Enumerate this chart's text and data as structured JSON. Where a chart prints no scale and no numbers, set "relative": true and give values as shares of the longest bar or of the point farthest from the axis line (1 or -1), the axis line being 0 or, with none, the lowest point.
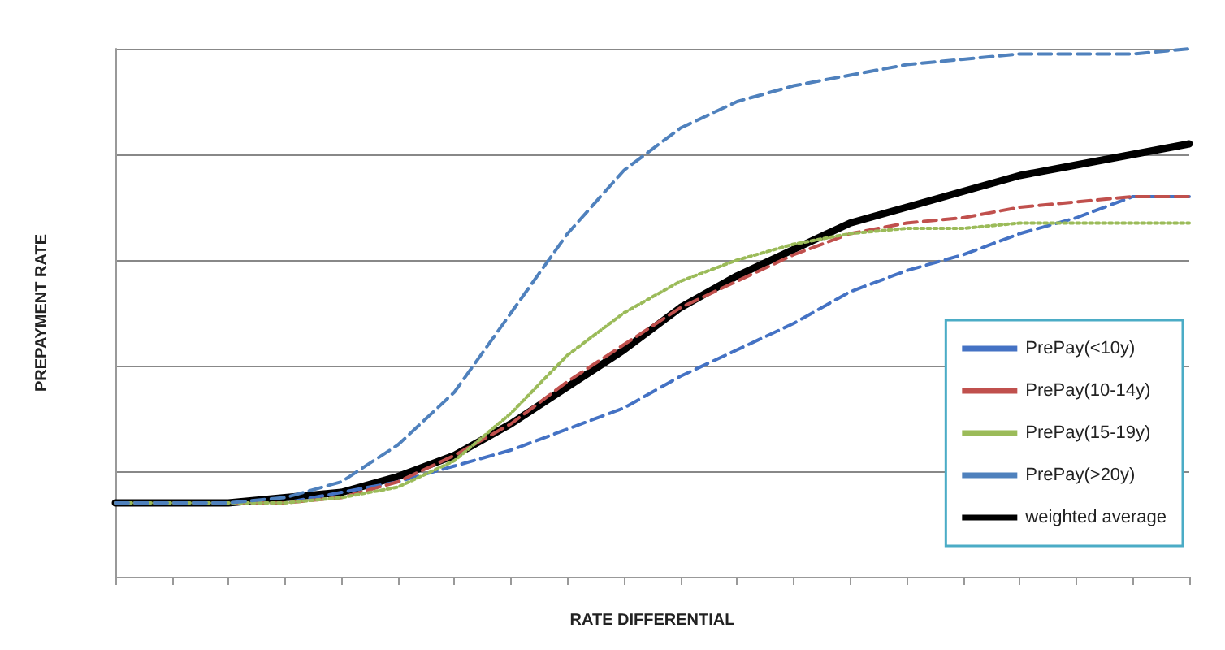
{
  "chart_data": {
    "type": "line",
    "relative": true,
    "xlabel": "RATE DIFFERENTIAL",
    "ylabel": "PREPAYMENT RATE",
    "grid": "y",
    "legend": "bottom right",
    "marker": "none",
    "categories": [
      null,
      null,
      null,
      null,
      null,
      null,
      null,
      null,
      null,
      null,
      null,
      null,
      null,
      null,
      null,
      null,
      null,
      null,
      null,
      null
    ],
    "series": [
      {
        "name": "PrePay(<10y)",
        "color": "#4472c4",
        "line_style": "dashed",
        "values": [
          0.14,
          0.14,
          0.14,
          0.14,
          0.16,
          0.18,
          0.21,
          0.24,
          0.28,
          0.32,
          0.38,
          0.43,
          0.48,
          0.54,
          0.58,
          0.61,
          0.65,
          0.68,
          0.72,
          0.72
        ]
      },
      {
        "name": "PrePay(10-14y)",
        "color": "#c0504d",
        "line_style": "dashed",
        "values": [
          0.14,
          0.14,
          0.14,
          0.14,
          0.15,
          0.18,
          0.23,
          0.29,
          0.37,
          0.44,
          0.51,
          0.56,
          0.61,
          0.65,
          0.67,
          0.68,
          0.7,
          0.71,
          0.72,
          0.72
        ]
      },
      {
        "name": "PrePay(15-19y)",
        "color": "#9bbb59",
        "line_style": "dotted",
        "values": [
          0.14,
          0.14,
          0.14,
          0.14,
          0.15,
          0.17,
          0.22,
          0.31,
          0.42,
          0.5,
          0.56,
          0.6,
          0.63,
          0.65,
          0.66,
          0.66,
          0.67,
          0.67,
          0.67,
          0.67
        ]
      },
      {
        "name": "PrePay(>20y)",
        "color": "#4f81bd",
        "line_style": "dashed",
        "values": [
          0.14,
          0.14,
          0.14,
          0.15,
          0.18,
          0.25,
          0.35,
          0.5,
          0.65,
          0.77,
          0.85,
          0.9,
          0.93,
          0.95,
          0.97,
          0.98,
          0.99,
          0.99,
          0.99,
          1
        ]
      },
      {
        "name": "weighted average",
        "color": "#000000",
        "line_style": "solid",
        "values": [
          0.14,
          0.14,
          0.14,
          0.15,
          0.16,
          0.19,
          0.23,
          0.29,
          0.36,
          0.43,
          0.51,
          0.57,
          0.62,
          0.67,
          0.7,
          0.73,
          0.76,
          0.78,
          0.8,
          0.82
        ]
      }
    ]
  }
}
